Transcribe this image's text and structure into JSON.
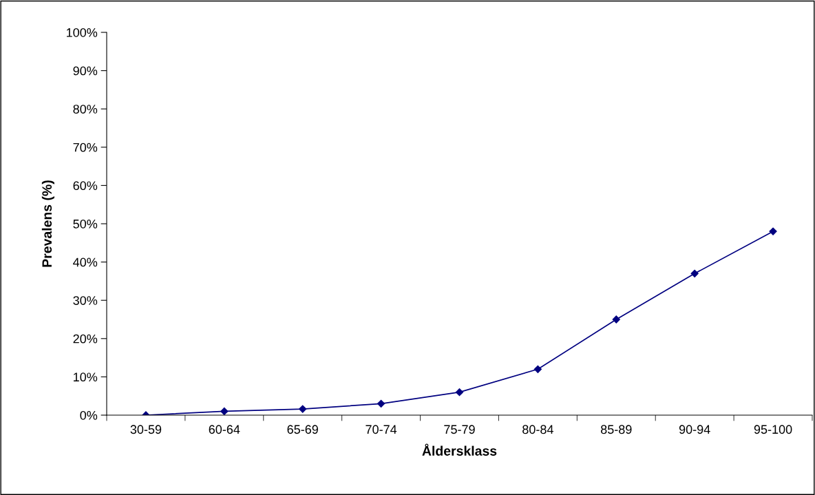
{
  "chart_data": {
    "type": "line",
    "xlabel": "Åldersklass",
    "ylabel": "Prevalens (%)",
    "categories": [
      "30-59",
      "60-64",
      "65-69",
      "70-74",
      "75-79",
      "80-84",
      "85-89",
      "90-94",
      "95-100"
    ],
    "series": [
      {
        "color": "#000080",
        "values": [
          0,
          1,
          1.6,
          3,
          6,
          12,
          25,
          37,
          48
        ]
      }
    ],
    "ylim": [
      0,
      100
    ],
    "yticks": [
      {
        "value": 0,
        "label": "0%"
      },
      {
        "value": 10,
        "label": "10%"
      },
      {
        "value": 20,
        "label": "20%"
      },
      {
        "value": 30,
        "label": "30%"
      },
      {
        "value": 40,
        "label": "40%"
      },
      {
        "value": 50,
        "label": "50%"
      },
      {
        "value": 60,
        "label": "60%"
      },
      {
        "value": 70,
        "label": "70%"
      },
      {
        "value": 80,
        "label": "80%"
      },
      {
        "value": 90,
        "label": "90%"
      },
      {
        "value": 100,
        "label": "100%"
      }
    ],
    "marker": "diamond",
    "line_style": "solid",
    "grid": false,
    "legend": false
  }
}
